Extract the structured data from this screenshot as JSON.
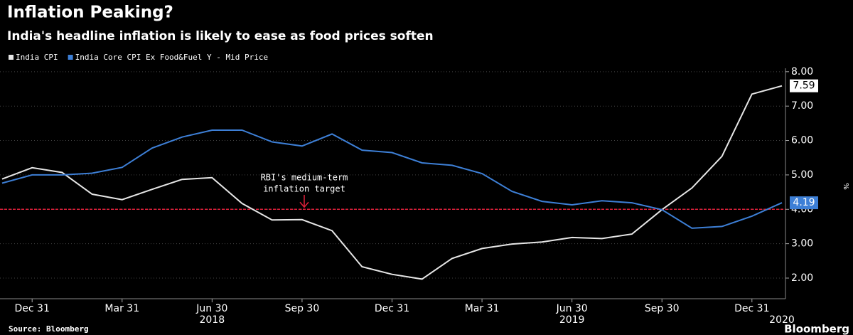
{
  "chart_data": {
    "type": "line",
    "title": "Inflation Peaking?",
    "subtitle": "India's headline inflation is likely to ease as food prices soften",
    "categories": [
      null,
      "Dec 31",
      null,
      null,
      "Mar 31",
      null,
      null,
      "Jun 30",
      null,
      null,
      "Sep 30",
      null,
      null,
      "Dec 31",
      null,
      null,
      "Mar 31",
      null,
      null,
      "Jun 30",
      null,
      null,
      "Sep 30",
      null,
      null,
      "Dec 31",
      null
    ],
    "x_year_labels": [
      null,
      null,
      null,
      null,
      null,
      null,
      null,
      "2018",
      null,
      null,
      null,
      null,
      null,
      null,
      null,
      null,
      null,
      null,
      null,
      "2019",
      null,
      null,
      null,
      null,
      null,
      null,
      "2020"
    ],
    "series": [
      {
        "name": "India CPI",
        "color": "#e6e6e6",
        "values": [
          4.88,
          5.21,
          5.07,
          4.44,
          4.28,
          4.58,
          4.87,
          4.92,
          4.17,
          3.69,
          3.7,
          3.38,
          2.33,
          2.11,
          1.97,
          2.57,
          2.86,
          2.99,
          3.05,
          3.18,
          3.15,
          3.28,
          3.99,
          4.62,
          5.54,
          7.35,
          7.59
        ]
      },
      {
        "name": "India Core CPI Ex Food&Fuel Y - Mid Price",
        "color": "#3d7fd6",
        "values": [
          4.76,
          5.0,
          5.0,
          5.05,
          5.22,
          5.78,
          6.1,
          6.3,
          6.3,
          5.96,
          5.84,
          6.19,
          5.72,
          5.65,
          5.35,
          5.28,
          5.04,
          4.52,
          4.23,
          4.13,
          4.25,
          4.19,
          3.99,
          3.45,
          3.5,
          3.8,
          4.19
        ]
      }
    ],
    "ylim": [
      1.4,
      8.1
    ],
    "yticks": [
      {
        "value": 2,
        "label": "2.00"
      },
      {
        "value": 3,
        "label": "3.00"
      },
      {
        "value": 4,
        "label": "4.00"
      },
      {
        "value": 5,
        "label": "5.00"
      },
      {
        "value": 6,
        "label": "6.00"
      },
      {
        "value": 7,
        "label": "7.00"
      },
      {
        "value": 8,
        "label": "8.00"
      }
    ],
    "y_axis_label": "%",
    "target": 4,
    "target_color": "#e0203a",
    "annotation": [
      "RBI's medium-term",
      "inflation target"
    ],
    "grid": true,
    "source": "Source: Bloomberg",
    "logo": "Bloomberg"
  }
}
